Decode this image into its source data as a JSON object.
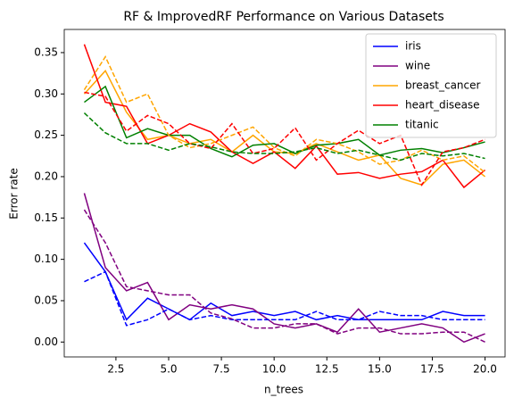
{
  "chart_data": {
    "type": "line",
    "title": "RF & ImprovedRF Performance on Various Datasets",
    "x_label": "n_trees",
    "y_label": "Error rate",
    "x": [
      1,
      2,
      3,
      4,
      5,
      6,
      7,
      8,
      9,
      10,
      11,
      12,
      13,
      14,
      15,
      16,
      17,
      18,
      19,
      20
    ],
    "xlim": [
      0.05,
      20.95
    ],
    "xticks": [
      2.5,
      {
        "value": 5,
        "label": "5.0"
      },
      7.5,
      {
        "value": 10,
        "label": "10.0"
      },
      12.5,
      {
        "value": 15,
        "label": "15.0"
      },
      17.5,
      {
        "value": 20,
        "label": "20.0"
      }
    ],
    "ylim": [
      -0.018,
      0.378
    ],
    "yticks": [
      {
        "value": 0,
        "label": "0.00"
      },
      {
        "value": 0.05,
        "label": "0.05"
      },
      {
        "value": 0.1,
        "label": "0.10"
      },
      {
        "value": 0.15,
        "label": "0.15"
      },
      {
        "value": 0.2,
        "label": "0.20"
      },
      {
        "value": 0.25,
        "label": "0.25"
      },
      {
        "value": 0.3,
        "label": "0.30"
      },
      {
        "value": 0.35,
        "label": "0.35"
      }
    ],
    "legend": "upper right",
    "series": [
      {
        "name": "iris",
        "color": "#0000ff",
        "values": [
          0.12,
          0.085,
          0.027,
          0.053,
          0.04,
          0.027,
          0.047,
          0.032,
          0.037,
          0.032,
          0.037,
          0.027,
          0.032,
          0.027,
          0.027,
          0.027,
          0.027,
          0.037,
          0.032,
          0.032
        ]
      },
      {
        "name": "wine",
        "color": "#800080",
        "values": [
          0.18,
          0.09,
          0.062,
          0.072,
          0.027,
          0.045,
          0.04,
          0.045,
          0.04,
          0.022,
          0.017,
          0.022,
          0.012,
          0.04,
          0.012,
          0.017,
          0.022,
          0.017,
          0.0,
          0.01
        ]
      },
      {
        "name": "breast_cancer",
        "color": "#ffa500",
        "values": [
          0.3,
          0.328,
          0.278,
          0.245,
          0.25,
          0.24,
          0.245,
          0.23,
          0.25,
          0.23,
          0.228,
          0.24,
          0.23,
          0.22,
          0.226,
          0.198,
          0.19,
          0.215,
          0.22,
          0.2
        ]
      },
      {
        "name": "heart_disease",
        "color": "#ff0000",
        "values": [
          0.36,
          0.29,
          0.285,
          0.24,
          0.25,
          0.264,
          0.254,
          0.23,
          0.216,
          0.23,
          0.21,
          0.237,
          0.203,
          0.205,
          0.198,
          0.203,
          0.206,
          0.22,
          0.187,
          0.208
        ]
      },
      {
        "name": "titanic",
        "color": "#008000",
        "values": [
          0.29,
          0.309,
          0.247,
          0.258,
          0.25,
          0.25,
          0.234,
          0.224,
          0.238,
          0.24,
          0.228,
          0.238,
          0.24,
          0.245,
          0.226,
          0.232,
          0.234,
          0.229,
          0.235,
          0.242
        ]
      },
      {
        "color": "#0000ff",
        "dash": true,
        "values": [
          0.073,
          0.085,
          0.02,
          0.027,
          0.04,
          0.027,
          0.032,
          0.027,
          0.027,
          0.027,
          0.027,
          0.037,
          0.027,
          0.027,
          0.037,
          0.032,
          0.032,
          0.027,
          0.027,
          0.027
        ]
      },
      {
        "color": "#800080",
        "dash": true,
        "values": [
          0.16,
          0.12,
          0.067,
          0.062,
          0.057,
          0.057,
          0.035,
          0.028,
          0.017,
          0.017,
          0.022,
          0.022,
          0.01,
          0.017,
          0.017,
          0.01,
          0.01,
          0.012,
          0.012,
          0.0
        ]
      },
      {
        "color": "#ffa500",
        "dash": true,
        "values": [
          0.305,
          0.345,
          0.29,
          0.3,
          0.25,
          0.235,
          0.24,
          0.25,
          0.26,
          0.235,
          0.225,
          0.245,
          0.24,
          0.23,
          0.215,
          0.22,
          0.232,
          0.22,
          0.225,
          0.205
        ]
      },
      {
        "color": "#ff0000",
        "dash": true,
        "values": [
          0.302,
          0.297,
          0.255,
          0.274,
          0.264,
          0.24,
          0.234,
          0.264,
          0.228,
          0.234,
          0.259,
          0.22,
          0.24,
          0.256,
          0.24,
          0.25,
          0.19,
          0.23,
          0.235,
          0.245
        ]
      },
      {
        "color": "#008000",
        "dash": true,
        "values": [
          0.277,
          0.253,
          0.24,
          0.24,
          0.232,
          0.24,
          0.236,
          0.23,
          0.228,
          0.228,
          0.23,
          0.235,
          0.228,
          0.232,
          0.226,
          0.22,
          0.228,
          0.225,
          0.228,
          0.222
        ]
      }
    ]
  }
}
